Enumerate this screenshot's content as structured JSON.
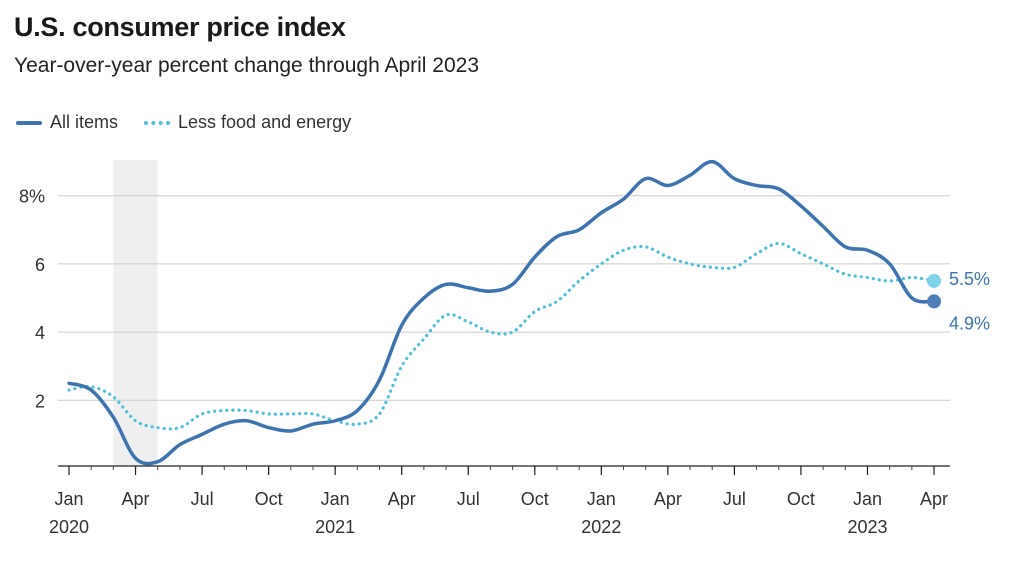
{
  "title": "U.S. consumer price index",
  "subtitle": "Year-over-year percent change through April 2023",
  "colors": {
    "all_items": "#3d74b0",
    "core": "#4cc2da",
    "recession": "#efefef",
    "grid": "#cccccc"
  },
  "chart_data": {
    "type": "line",
    "title": "U.S. consumer price index",
    "subtitle": "Year-over-year percent change through April 2023",
    "xlabel": "",
    "ylabel": "",
    "ylim": [
      0,
      9.6
    ],
    "y_ticks": [
      2,
      4,
      6,
      8
    ],
    "y_tick_labels": [
      "2",
      "4",
      "6",
      "8%"
    ],
    "grid": "horizontal",
    "legend": "top-left",
    "x": [
      "2020-01",
      "2020-02",
      "2020-03",
      "2020-04",
      "2020-05",
      "2020-06",
      "2020-07",
      "2020-08",
      "2020-09",
      "2020-10",
      "2020-11",
      "2020-12",
      "2021-01",
      "2021-02",
      "2021-03",
      "2021-04",
      "2021-05",
      "2021-06",
      "2021-07",
      "2021-08",
      "2021-09",
      "2021-10",
      "2021-11",
      "2021-12",
      "2022-01",
      "2022-02",
      "2022-03",
      "2022-04",
      "2022-05",
      "2022-06",
      "2022-07",
      "2022-08",
      "2022-09",
      "2022-10",
      "2022-11",
      "2022-12",
      "2023-01",
      "2023-02",
      "2023-03",
      "2023-04"
    ],
    "x_ticks": [
      {
        "x": "2020-01",
        "label": "Jan",
        "year": "2020"
      },
      {
        "x": "2020-04",
        "label": "Apr",
        "year": ""
      },
      {
        "x": "2020-07",
        "label": "Jul",
        "year": ""
      },
      {
        "x": "2020-10",
        "label": "Oct",
        "year": ""
      },
      {
        "x": "2021-01",
        "label": "Jan",
        "year": "2021"
      },
      {
        "x": "2021-04",
        "label": "Apr",
        "year": ""
      },
      {
        "x": "2021-07",
        "label": "Jul",
        "year": ""
      },
      {
        "x": "2021-10",
        "label": "Oct",
        "year": ""
      },
      {
        "x": "2022-01",
        "label": "Jan",
        "year": "2022"
      },
      {
        "x": "2022-04",
        "label": "Apr",
        "year": ""
      },
      {
        "x": "2022-07",
        "label": "Jul",
        "year": ""
      },
      {
        "x": "2022-10",
        "label": "Oct",
        "year": ""
      },
      {
        "x": "2023-01",
        "label": "Jan",
        "year": "2023"
      },
      {
        "x": "2023-04",
        "label": "Apr",
        "year": ""
      }
    ],
    "recession": {
      "start": "2020-03",
      "end": "2020-04"
    },
    "series": [
      {
        "name": "All items",
        "style": "solid",
        "color": "#3d74b0",
        "values": [
          2.5,
          2.3,
          1.5,
          0.3,
          0.2,
          0.7,
          1.0,
          1.3,
          1.4,
          1.2,
          1.1,
          1.3,
          1.4,
          1.7,
          2.6,
          4.2,
          5.0,
          5.4,
          5.3,
          5.2,
          5.4,
          6.2,
          6.8,
          7.0,
          7.5,
          7.9,
          8.5,
          8.3,
          8.6,
          9.0,
          8.5,
          8.3,
          8.2,
          7.7,
          7.1,
          6.5,
          6.4,
          6.0,
          5.0,
          4.9
        ],
        "end_label": "4.9%"
      },
      {
        "name": "Less food and energy",
        "style": "dotted",
        "color": "#4cc2da",
        "values": [
          2.3,
          2.4,
          2.1,
          1.4,
          1.2,
          1.2,
          1.6,
          1.7,
          1.7,
          1.6,
          1.6,
          1.6,
          1.4,
          1.3,
          1.6,
          3.0,
          3.8,
          4.5,
          4.3,
          4.0,
          4.0,
          4.6,
          4.9,
          5.5,
          6.0,
          6.4,
          6.5,
          6.2,
          6.0,
          5.9,
          5.9,
          6.3,
          6.6,
          6.3,
          6.0,
          5.7,
          5.6,
          5.5,
          5.6,
          5.5
        ],
        "end_label": "5.5%"
      }
    ]
  }
}
